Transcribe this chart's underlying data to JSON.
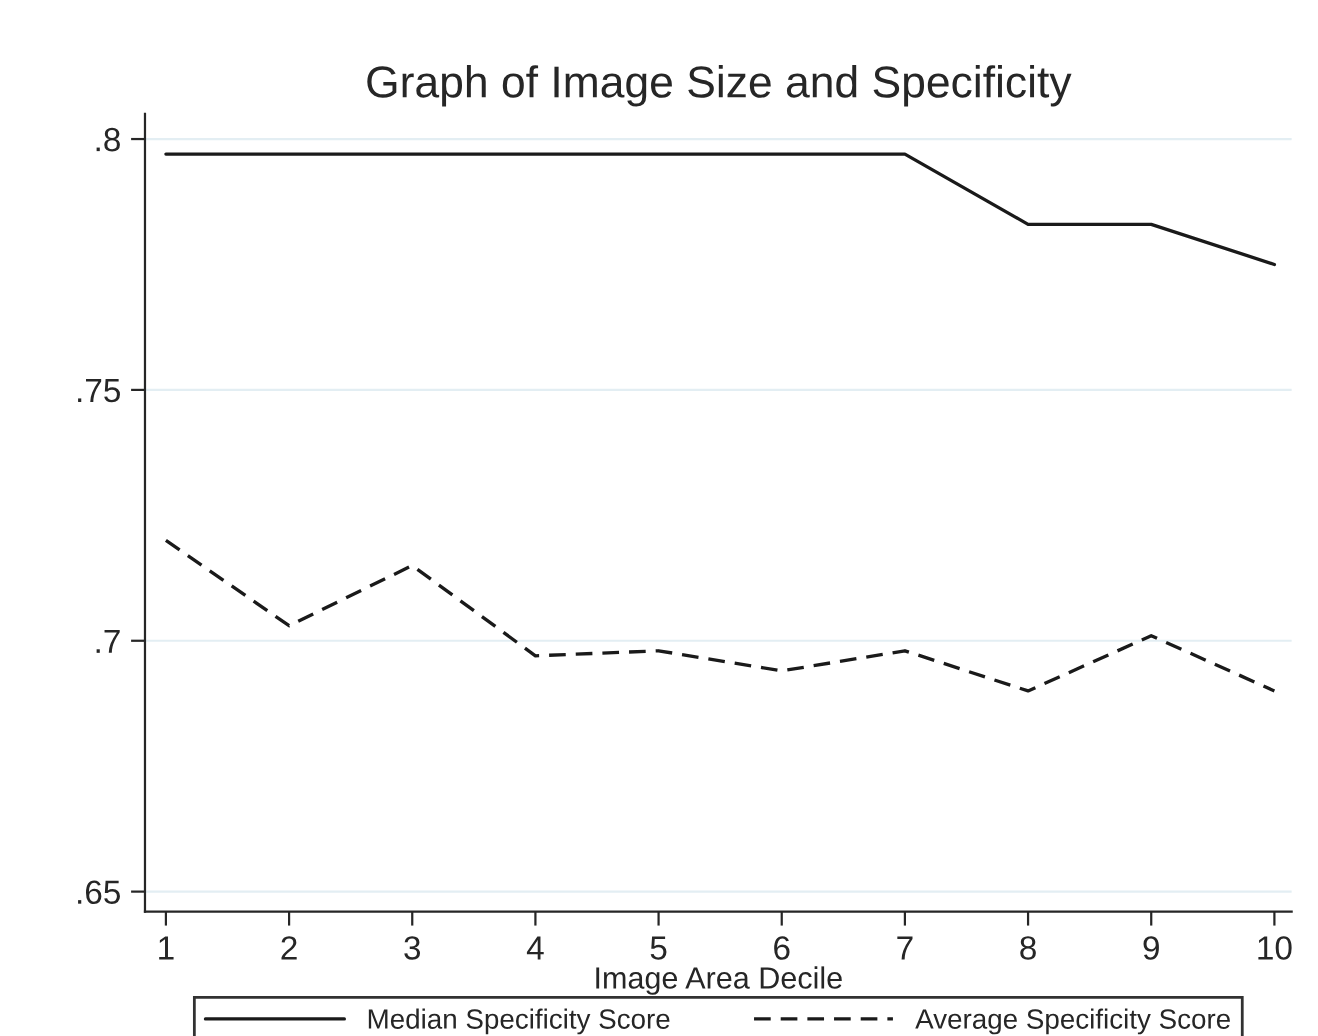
{
  "chart_data": {
    "type": "line",
    "title": "Graph of Image Size and Specificity",
    "xlabel": "Image Area Decile",
    "x": [
      1,
      2,
      3,
      4,
      5,
      6,
      7,
      8,
      9,
      10
    ],
    "series": [
      {
        "name": "Median Specificity Score",
        "color": "#1a1a1a",
        "line_style": "solid",
        "values": [
          0.797,
          0.797,
          0.797,
          0.797,
          0.797,
          0.797,
          0.797,
          0.783,
          0.783,
          0.775
        ]
      },
      {
        "name": "Average Specificity Score",
        "color": "#1a1a1a",
        "line_style": "dashed",
        "values": [
          0.72,
          0.703,
          0.715,
          0.697,
          0.698,
          0.694,
          0.698,
          0.69,
          0.701,
          0.69
        ]
      }
    ],
    "xlim": [
      0.83,
      10.14
    ],
    "xticks": [
      1,
      2,
      3,
      4,
      5,
      6,
      7,
      8,
      9,
      10
    ],
    "ylim": [
      0.646,
      0.805
    ],
    "yticks": [
      {
        "value": 0.65,
        "label": ".65"
      },
      {
        "value": 0.7,
        "label": ".7"
      },
      {
        "value": 0.75,
        "label": ".75"
      },
      {
        "value": 0.8,
        "label": ".8"
      }
    ],
    "grid": "y",
    "legend": "bottom",
    "marker": "none"
  }
}
